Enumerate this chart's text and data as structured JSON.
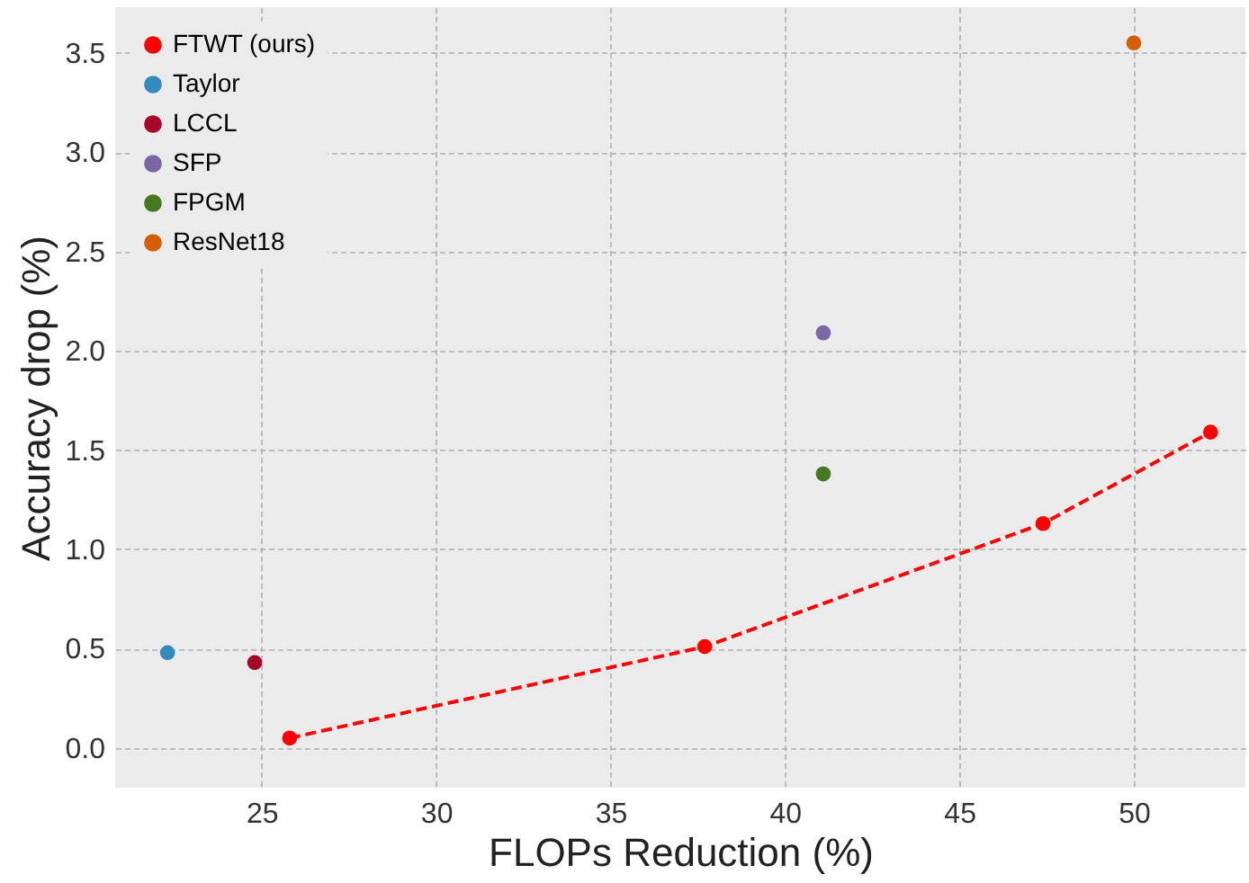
{
  "chart_data": {
    "type": "scatter",
    "xlabel": "FLOPs Reduction (%)",
    "ylabel": "Accuracy drop (%)",
    "xlim": [
      20.8,
      53.2
    ],
    "xticks": [
      25,
      30,
      35,
      40,
      45,
      50
    ],
    "ylim": [
      -0.2,
      3.73
    ],
    "yticks": [
      {
        "value": 0,
        "label": "0.0"
      },
      0.5,
      {
        "value": 1,
        "label": "1.0"
      },
      1.5,
      {
        "value": 2,
        "label": "2.0"
      },
      2.5,
      {
        "value": 3,
        "label": "3.0"
      },
      3.5
    ],
    "grid": true,
    "legend": "top left",
    "marker": "circle",
    "series": [
      {
        "name": "FTWT (ours)",
        "type": "line",
        "line_style": "dashed",
        "color": "#ff0000",
        "x": [
          25.8,
          37.7,
          47.4,
          52.2
        ],
        "values": [
          0.05,
          0.51,
          1.13,
          1.59
        ]
      },
      {
        "name": "Taylor",
        "color": "#348abd",
        "x": [
          22.3
        ],
        "values": [
          0.48
        ]
      },
      {
        "name": "LCCL",
        "color": "#a60628",
        "x": [
          24.8
        ],
        "values": [
          0.43
        ]
      },
      {
        "name": "SFP",
        "color": "#7a68a6",
        "x": [
          41.1
        ],
        "values": [
          2.09
        ]
      },
      {
        "name": "FPGM",
        "color": "#467821",
        "x": [
          41.1
        ],
        "values": [
          1.38
        ]
      },
      {
        "name": "ResNet18",
        "color": "#d55e00",
        "x": [
          50.0
        ],
        "values": [
          3.55
        ]
      }
    ]
  }
}
